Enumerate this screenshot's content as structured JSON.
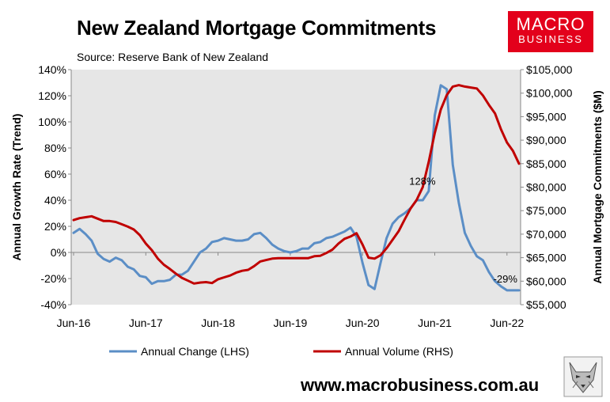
{
  "title": "New Zealand Mortgage Commitments",
  "source": "Source: Reserve Bank of New Zealand",
  "logo": {
    "line1": "MACRO",
    "line2": "BUSINESS"
  },
  "url": "www.macrobusiness.com.au",
  "colors": {
    "series_lhs": "#5b8ec6",
    "series_rhs": "#c00000",
    "logo_bg": "#e3001b",
    "plot_bg": "#e6e6e6"
  },
  "chart_data": {
    "type": "line",
    "title": "New Zealand Mortgage Commitments",
    "y_left_label": "Annual Growth Rate (Trend)",
    "y_right_label": "Annual Mortgage Commitments ($M)",
    "y_left_range": [
      -40,
      140
    ],
    "y_left_ticks": [
      "-40%",
      "-20%",
      "0%",
      "20%",
      "40%",
      "60%",
      "80%",
      "100%",
      "120%",
      "140%"
    ],
    "y_right_range": [
      55000,
      105000
    ],
    "y_right_ticks": [
      "$55,000",
      "$60,000",
      "$65,000",
      "$70,000",
      "$75,000",
      "$80,000",
      "$85,000",
      "$90,000",
      "$95,000",
      "$100,000",
      "$105,000"
    ],
    "x_ticks": [
      "Jun-16",
      "Jun-17",
      "Jun-18",
      "Jun-19",
      "Jun-20",
      "Jun-21",
      "Jun-22"
    ],
    "grid": false,
    "legend_position": "bottom",
    "annotations": [
      {
        "text": "128%",
        "series": "Annual Change (LHS)",
        "month_index": 59
      },
      {
        "text": "-29%",
        "series": "Annual Change (LHS)",
        "month_index": 72
      }
    ],
    "series": [
      {
        "name": "Annual Change (LHS)",
        "axis": "left",
        "values": [
          15,
          18,
          14,
          9,
          -1,
          -5,
          -7,
          -4,
          -6,
          -11,
          -13,
          -18,
          -19,
          -24,
          -22,
          -22,
          -21,
          -17,
          -17,
          -14,
          -7,
          0,
          3,
          8,
          9,
          11,
          10,
          9,
          9,
          10,
          14,
          15,
          11,
          6,
          3,
          1,
          0,
          1,
          3,
          3,
          7,
          8,
          11,
          12,
          14,
          16,
          19,
          12,
          -8,
          -25,
          -28,
          -8,
          11,
          22,
          27,
          30,
          34,
          40,
          40,
          47,
          105,
          128,
          125,
          67,
          38,
          15,
          5,
          -3,
          -6,
          -15,
          -22,
          -26,
          -29,
          -29,
          -29
        ]
      },
      {
        "name": "Annual Volume (RHS)",
        "axis": "right",
        "values": [
          73000,
          73400,
          73600,
          73800,
          73300,
          72800,
          72800,
          72600,
          72100,
          71600,
          71000,
          69800,
          68000,
          66600,
          64800,
          63500,
          62600,
          61600,
          60700,
          60100,
          59500,
          59700,
          59800,
          59600,
          60400,
          60800,
          61200,
          61800,
          62200,
          62400,
          63200,
          64200,
          64500,
          64800,
          64900,
          64900,
          64900,
          64900,
          64900,
          64900,
          65300,
          65400,
          66000,
          66700,
          68000,
          69000,
          69500,
          70200,
          67800,
          65000,
          64800,
          65500,
          67000,
          68800,
          70600,
          73100,
          75500,
          77300,
          80000,
          85400,
          91500,
          96500,
          99600,
          101400,
          101700,
          101400,
          101200,
          101000,
          99500,
          97500,
          95700,
          92300,
          89500,
          87700,
          85000
        ]
      }
    ]
  }
}
